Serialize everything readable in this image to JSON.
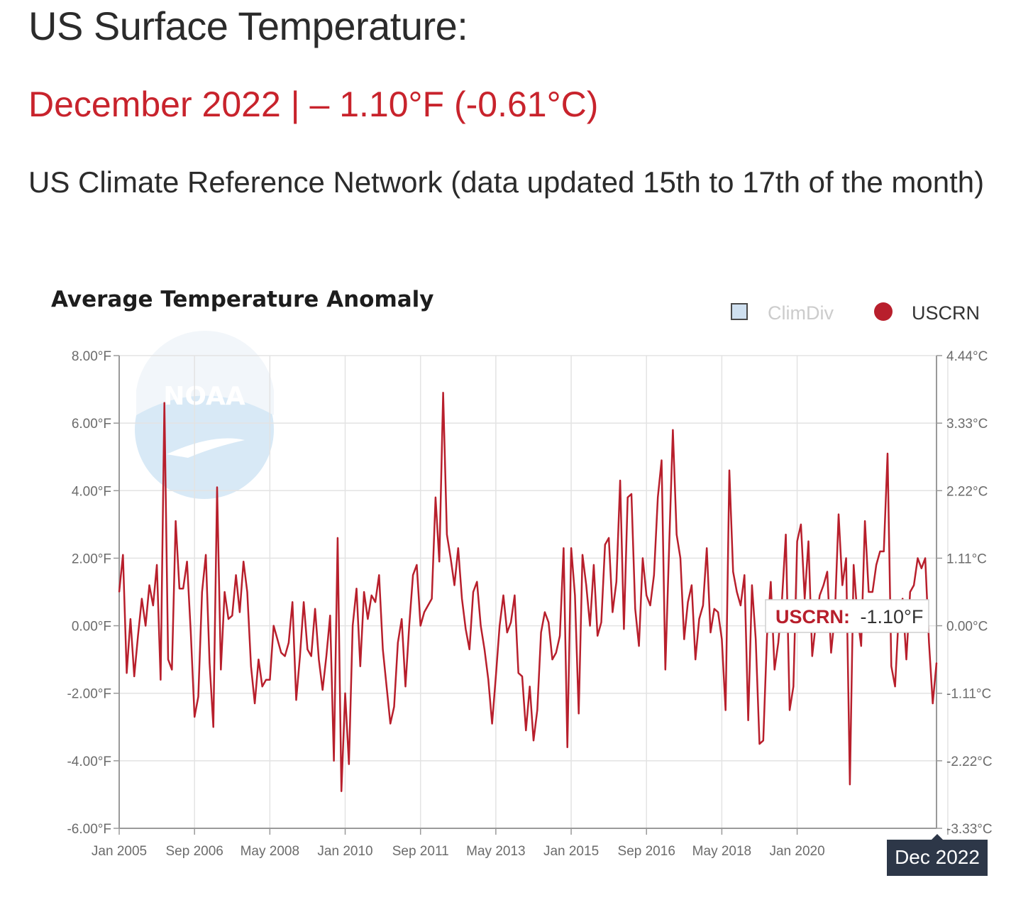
{
  "header": {
    "title": "US Surface Temperature:",
    "subtitle": "December 2022 | – 1.10°F (-0.61°C)",
    "description": "US Climate Reference Network (data updated 15th to 17th of the month)"
  },
  "colors": {
    "accent": "#c8232c",
    "line": "#b81f2c",
    "grid": "#e3e3e3"
  },
  "watermark": {
    "text": "NOAA"
  },
  "chart_data": {
    "type": "line",
    "title": "Average Temperature Anomaly",
    "legend": [
      {
        "name": "ClimDiv",
        "marker": "square",
        "color": "#cfe0f0",
        "active": false
      },
      {
        "name": "USCRN",
        "marker": "circle",
        "color": "#b81f2c",
        "active": true
      }
    ],
    "legend_position": "top-right",
    "yleft_ticks": [
      "8.00°F",
      "6.00°F",
      "4.00°F",
      "2.00°F",
      "0.00°F",
      "-2.00°F",
      "-4.00°F",
      "-6.00°F"
    ],
    "yright_ticks": [
      "4.44°C",
      "3.33°C",
      "2.22°C",
      "1.11°C",
      "0.00°C",
      "-1.11°C",
      "-2.22°C",
      "-3.33°C"
    ],
    "x_ticks": [
      "Jan 2005",
      "Sep 2006",
      "May 2008",
      "Jan 2010",
      "Sep 2011",
      "May 2013",
      "Jan 2015",
      "Sep 2016",
      "May 2018",
      "Jan 2020"
    ],
    "ylim": [
      -6,
      8
    ],
    "units": "°F",
    "start": "Jan 2005",
    "end": "Dec 2022",
    "tooltip": {
      "series": "USCRN:",
      "value": "-1.10°F"
    },
    "crosshair_label": "Dec 2022",
    "series": [
      {
        "name": "USCRN",
        "values": [
          1.0,
          2.1,
          -1.4,
          0.2,
          -1.5,
          -0.3,
          0.8,
          0.0,
          1.2,
          0.6,
          1.8,
          -1.6,
          6.6,
          -1.0,
          -1.3,
          3.1,
          1.1,
          1.1,
          1.9,
          -0.2,
          -2.7,
          -2.1,
          1.0,
          2.1,
          -1.1,
          -3.0,
          4.1,
          -1.3,
          1.0,
          0.2,
          0.3,
          1.5,
          0.4,
          1.9,
          1.0,
          -1.2,
          -2.3,
          -1.0,
          -1.8,
          -1.6,
          -1.6,
          0.0,
          -0.4,
          -0.8,
          -0.9,
          -0.5,
          0.7,
          -2.2,
          -0.9,
          0.7,
          -0.7,
          -0.9,
          0.5,
          -1.0,
          -1.9,
          -0.9,
          0.3,
          -4.0,
          2.6,
          -4.9,
          -2.0,
          -4.1,
          0.0,
          1.1,
          -1.2,
          1.0,
          0.2,
          0.9,
          0.7,
          1.5,
          -0.7,
          -1.8,
          -2.9,
          -2.4,
          -0.5,
          0.2,
          -1.8,
          0.0,
          1.5,
          1.8,
          0.0,
          0.4,
          0.6,
          0.8,
          3.8,
          1.9,
          6.9,
          2.7,
          2.0,
          1.2,
          2.3,
          0.8,
          -0.1,
          -0.7,
          1.0,
          1.3,
          0.0,
          -0.7,
          -1.6,
          -2.9,
          -1.5,
          0.0,
          0.9,
          -0.2,
          0.1,
          0.9,
          -1.4,
          -1.5,
          -3.1,
          -1.8,
          -3.4,
          -2.5,
          -0.2,
          0.4,
          0.1,
          -1.0,
          -0.8,
          -0.3,
          2.3,
          -3.6,
          2.3,
          0.9,
          -2.6,
          2.1,
          1.2,
          0.0,
          1.8,
          -0.3,
          0.1,
          2.4,
          2.6,
          0.4,
          1.3,
          4.3,
          -0.1,
          3.8,
          3.9,
          0.5,
          -0.6,
          2.0,
          0.9,
          0.6,
          1.5,
          3.8,
          4.9,
          -1.3,
          2.3,
          5.8,
          2.7,
          2.0,
          -0.4,
          0.7,
          1.2,
          -1.0,
          0.2,
          0.6,
          2.3,
          -0.2,
          0.5,
          0.4,
          -0.4,
          -2.5,
          4.6,
          1.6,
          1.0,
          0.6,
          1.5,
          -2.8,
          1.2,
          -0.4,
          -3.5,
          -3.4,
          -0.3,
          1.3,
          -1.3,
          -0.5,
          0.8,
          2.7,
          -2.5,
          -1.8,
          2.5,
          3.0,
          0.8,
          2.5,
          -0.9,
          0.1,
          0.9,
          1.2,
          1.6,
          -0.8,
          0.3,
          3.3,
          1.2,
          2.0,
          -4.7,
          1.8,
          0.3,
          -0.6,
          3.1,
          1.0,
          1.0,
          1.8,
          2.2,
          2.2,
          5.1,
          -1.2,
          -1.8,
          0.4,
          0.8,
          -1.0,
          1.0,
          1.2,
          2.0,
          1.7,
          2.0,
          -0.5,
          -2.3,
          -1.1
        ]
      }
    ]
  }
}
